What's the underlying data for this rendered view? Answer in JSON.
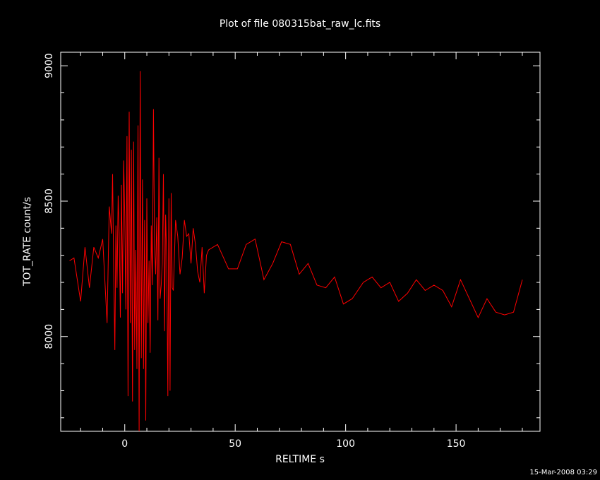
{
  "chart_data": {
    "type": "line",
    "title": "Plot of file 080315bat_raw_lc.fits",
    "xlabel": "RELTIME   s",
    "ylabel": "TOT_RATE   count/s",
    "xlim": [
      -29,
      188
    ],
    "ylim": [
      7650,
      9050
    ],
    "xticks": [
      0,
      50,
      100,
      150
    ],
    "yticks": [
      8000,
      8500,
      9000
    ],
    "xtick_labels": [
      "0",
      "50",
      "100",
      "150"
    ],
    "ytick_labels": [
      "8000",
      "8500",
      "9000"
    ],
    "grid": false,
    "legend": "none",
    "line_color": "#ff0000",
    "axis_color": "#ffffff",
    "background": "#000000",
    "series": [
      {
        "x": [
          -25,
          -23,
          -20,
          -18,
          -16,
          -14,
          -12,
          -10,
          -8,
          -7,
          -6,
          -5.5,
          -5,
          -4.5,
          -4,
          -3.5,
          -3,
          -2.5,
          -2,
          -1.5,
          -1,
          -0.5,
          0,
          0.5,
          1,
          1.5,
          2,
          2.5,
          3,
          3.5,
          4,
          4.5,
          5,
          5.5,
          6,
          6.5,
          7,
          7.5,
          8,
          8.5,
          9,
          9.5,
          10,
          10.5,
          11,
          11.5,
          12,
          12.5,
          13,
          13.5,
          14,
          14.5,
          15,
          15.5,
          16,
          16.5,
          17,
          17.5,
          18,
          18.5,
          19,
          19.5,
          20,
          20.5,
          21,
          21.5,
          22,
          23,
          24,
          25,
          26,
          27,
          28,
          29,
          30,
          31,
          32,
          33,
          34,
          35,
          36,
          37,
          38,
          42,
          47,
          51,
          55,
          59,
          63,
          67,
          71,
          75,
          79,
          83,
          87,
          91,
          95,
          99,
          103,
          108,
          112,
          116,
          120,
          124,
          128,
          132,
          136,
          140,
          144,
          148,
          152,
          156,
          160,
          164,
          168,
          172,
          176,
          180
        ],
        "y": [
          8280,
          8290,
          8130,
          8330,
          8180,
          8330,
          8290,
          8360,
          8050,
          8480,
          8380,
          8600,
          8240,
          7950,
          8410,
          8180,
          8520,
          8380,
          8070,
          8560,
          8160,
          8650,
          8450,
          8100,
          8740,
          7780,
          8830,
          8050,
          8690,
          7760,
          8720,
          7950,
          8320,
          7880,
          8780,
          7650,
          8980,
          7920,
          8580,
          7880,
          8430,
          7690,
          8510,
          8050,
          8280,
          7940,
          8410,
          8190,
          8840,
          8330,
          8230,
          8440,
          8060,
          8660,
          8140,
          8190,
          8270,
          8600,
          8020,
          8450,
          8290,
          7780,
          8510,
          7800,
          8530,
          8180,
          8170,
          8430,
          8370,
          8230,
          8290,
          8430,
          8370,
          8380,
          8270,
          8400,
          8340,
          8240,
          8200,
          8330,
          8160,
          8300,
          8320,
          8340,
          8250,
          8250,
          8340,
          8360,
          8210,
          8270,
          8350,
          8340,
          8230,
          8270,
          8190,
          8180,
          8220,
          8120,
          8140,
          8200,
          8220,
          8180,
          8200,
          8130,
          8160,
          8210,
          8170,
          8190,
          8170,
          8110,
          8210,
          8140,
          8070,
          8140,
          8090,
          8080,
          8090,
          8210
        ]
      }
    ]
  },
  "footer": {
    "timestamp": "15-Mar-2008 03:29"
  }
}
